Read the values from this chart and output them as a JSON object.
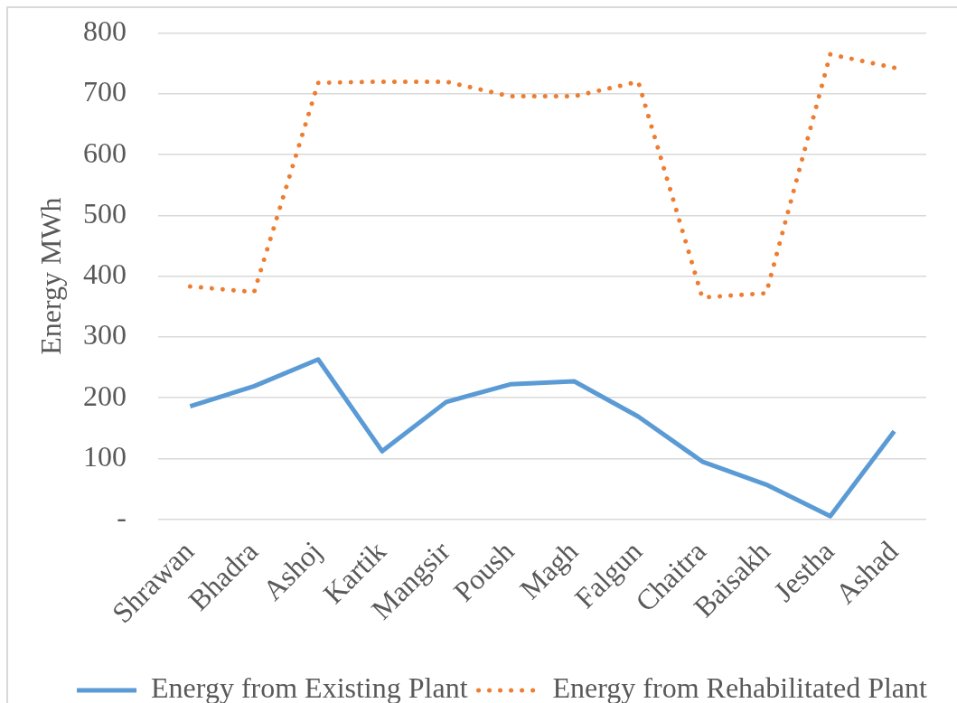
{
  "chart_data": {
    "type": "line",
    "ylabel": "Energy MWh",
    "categories": [
      "Shrawan",
      "Bhadra",
      "Ashoj",
      "Kartik",
      "Mangsir",
      "Poush",
      "Magh",
      "Falgun",
      "Chaitra",
      "Baisakh",
      "Jestha",
      "Ashad"
    ],
    "series": [
      {
        "name": "Energy from Existing Plant",
        "color": "#5b9bd5",
        "line_style": "solid",
        "values": [
          186,
          219,
          263,
          112,
          193,
          222,
          227,
          169,
          95,
          57,
          5,
          145
        ]
      },
      {
        "name": "Energy from Rehabilitated Plant",
        "color": "#ed7d31",
        "line_style": "dotted",
        "values": [
          383,
          374,
          718,
          720,
          720,
          696,
          696,
          720,
          365,
          372,
          765,
          743
        ]
      }
    ],
    "ylim": [
      0,
      800
    ],
    "yticks": [
      {
        "value": 0,
        "label": "-"
      },
      100,
      200,
      300,
      400,
      500,
      600,
      700,
      800
    ],
    "grid": "y",
    "legend": "bottom",
    "marker": "none"
  }
}
